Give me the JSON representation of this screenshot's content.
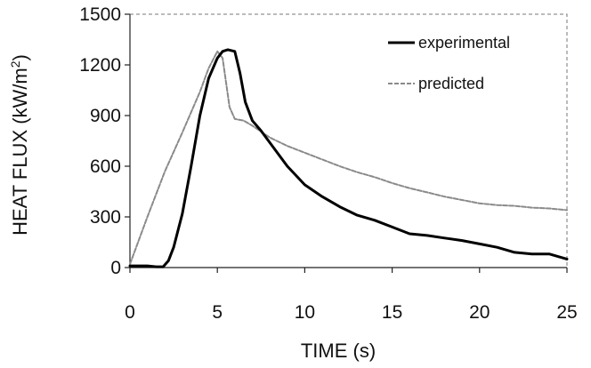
{
  "chart_data": {
    "type": "line",
    "xlabel": "TIME (s)",
    "ylabel_main": "HEAT FLUX (kW/m",
    "ylabel_sup": "2",
    "ylabel_close": ")",
    "xlim": [
      0,
      25
    ],
    "ylim": [
      0,
      1500
    ],
    "x_ticks": [
      "0",
      "5",
      "10",
      "15",
      "20",
      "25"
    ],
    "y_ticks": [
      "0",
      "300",
      "600",
      "900",
      "1200",
      "1500"
    ],
    "grid": false,
    "legend_position": "top-right",
    "series": [
      {
        "name": "experimental",
        "color": "#000000",
        "style": "solid",
        "x": [
          0,
          1,
          1.5,
          1.9,
          2.2,
          2.5,
          3,
          3.5,
          4,
          4.5,
          5,
          5.3,
          5.6,
          6.0,
          6.3,
          6.6,
          7,
          7.5,
          8,
          9,
          10,
          11,
          12,
          13,
          14,
          15,
          16,
          17,
          18,
          19,
          20,
          21,
          22,
          23,
          24,
          25
        ],
        "y": [
          10,
          10,
          5,
          5,
          40,
          120,
          320,
          600,
          900,
          1120,
          1240,
          1280,
          1290,
          1280,
          1150,
          980,
          870,
          810,
          740,
          600,
          490,
          420,
          360,
          310,
          280,
          240,
          200,
          190,
          175,
          160,
          140,
          120,
          90,
          80,
          80,
          50
        ]
      },
      {
        "name": "predicted",
        "color": "#8a8a8a",
        "style": "dashed",
        "x": [
          0,
          1,
          2,
          3,
          4,
          4.5,
          5,
          5.3,
          5.7,
          6,
          6.5,
          7,
          8,
          9,
          10,
          11,
          12,
          13,
          14,
          15,
          16,
          17,
          18,
          19,
          20,
          21,
          22,
          23,
          24,
          25
        ],
        "y": [
          20,
          300,
          570,
          800,
          1040,
          1180,
          1280,
          1240,
          950,
          880,
          870,
          840,
          770,
          720,
          680,
          640,
          600,
          565,
          535,
          500,
          470,
          445,
          420,
          400,
          380,
          370,
          365,
          355,
          350,
          340
        ]
      }
    ]
  }
}
